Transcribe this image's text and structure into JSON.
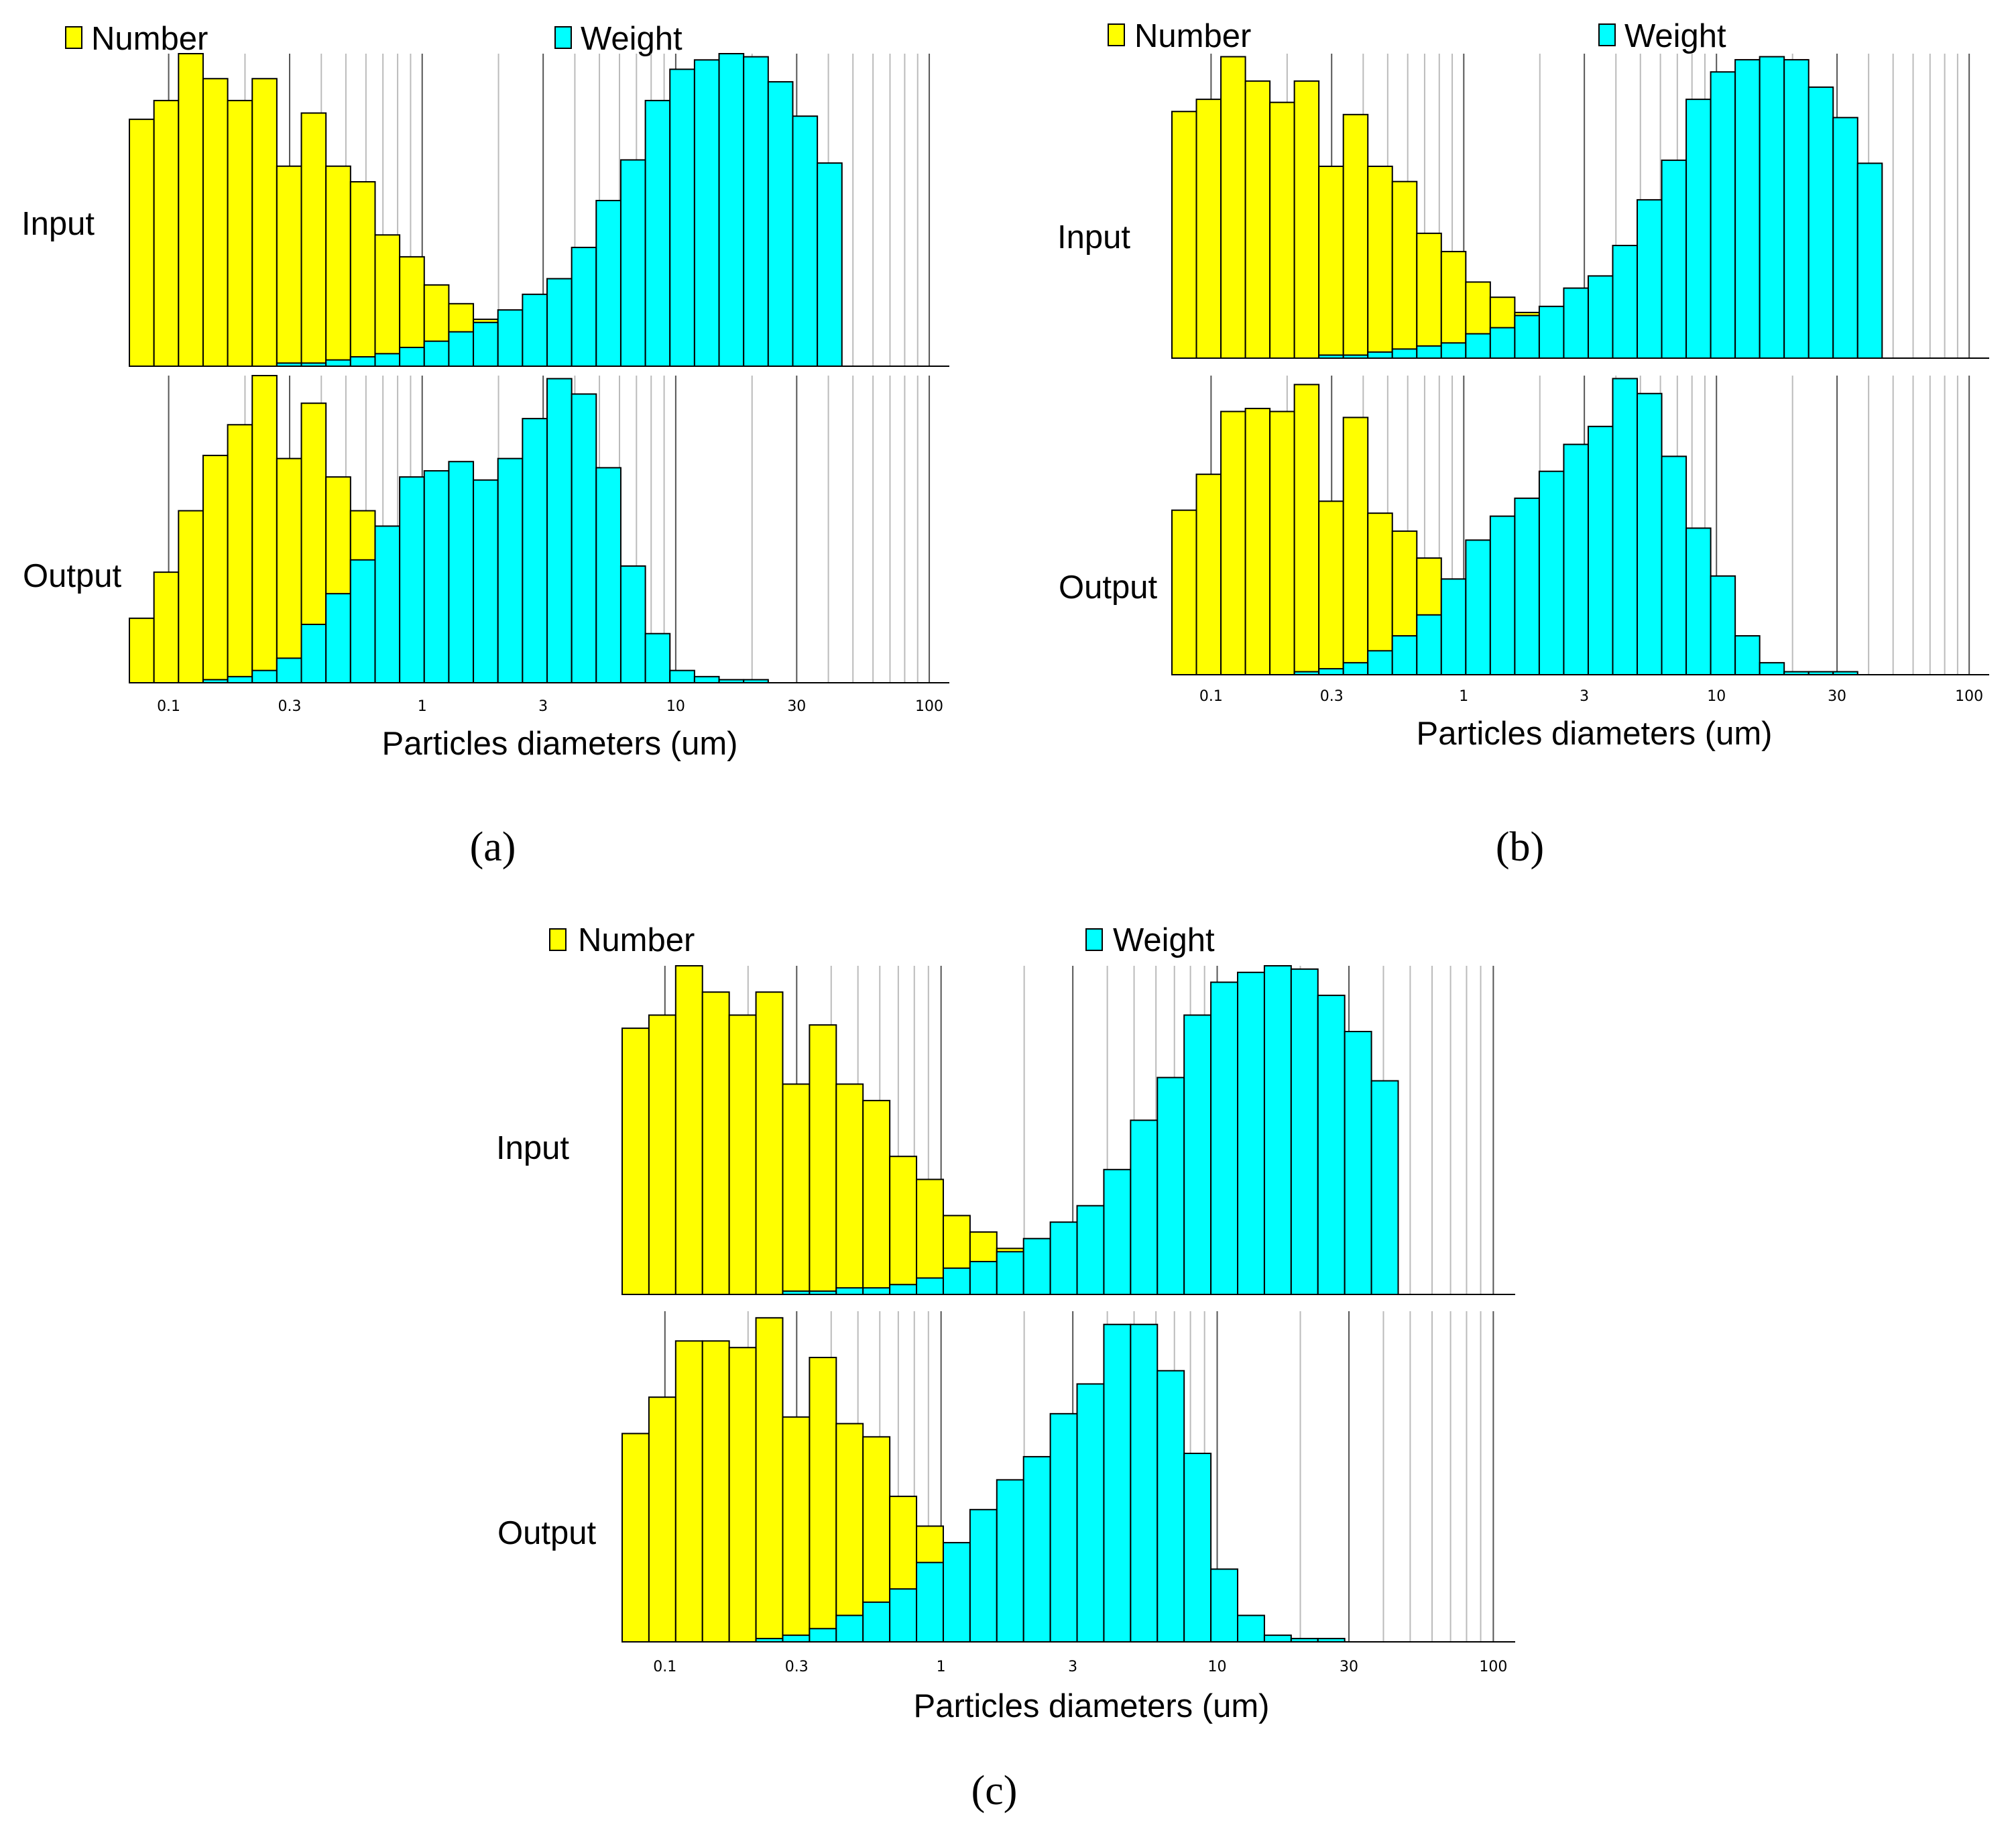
{
  "figure": {
    "xlabel": "Particles diameters (um)",
    "legend": {
      "number_label": "Number",
      "weight_label": "Weight"
    },
    "row_labels": {
      "input": "Input",
      "output": "Output"
    },
    "tick_values": [
      0.1,
      0.3,
      1,
      3,
      10,
      30,
      100
    ],
    "tick_labels": [
      "0.1",
      "0.3",
      "1",
      "3",
      "10",
      "30",
      "100"
    ],
    "colors": {
      "number": "#FFFF00",
      "weight": "#00FFFF",
      "grid": "#BBBBBB",
      "grid_bold": "#555555",
      "axis": "#000000"
    }
  },
  "chart_data": [
    {
      "type": "bar",
      "panel": "a",
      "caption": "(a)",
      "xscale": "log",
      "xlim": [
        0.07,
        120
      ],
      "bin_min": 0.07,
      "bin_ratio": 1.25,
      "series": [
        {
          "name": "Number",
          "subplot": "Input",
          "values": [
            0.79,
            0.85,
            1.0,
            0.92,
            0.85,
            0.92,
            0.64,
            0.81,
            0.64,
            0.59,
            0.42,
            0.35,
            0.26,
            0.2,
            0.15,
            0.11,
            0.07
          ]
        },
        {
          "name": "Weight",
          "subplot": "Input",
          "values": [
            0,
            0,
            0,
            0,
            0,
            0,
            0.01,
            0.01,
            0.02,
            0.03,
            0.04,
            0.06,
            0.08,
            0.11,
            0.14,
            0.18,
            0.23,
            0.28,
            0.38,
            0.53,
            0.66,
            0.85,
            0.95,
            0.98,
            1.0,
            0.99,
            0.91,
            0.8,
            0.65
          ]
        },
        {
          "name": "Number",
          "subplot": "Output",
          "values": [
            0.21,
            0.36,
            0.56,
            0.74,
            0.84,
            1.0,
            0.73,
            0.91,
            0.67,
            0.56
          ]
        },
        {
          "name": "Weight",
          "subplot": "Output",
          "values": [
            0,
            0,
            0,
            0.01,
            0.02,
            0.04,
            0.08,
            0.19,
            0.29,
            0.4,
            0.51,
            0.67,
            0.69,
            0.72,
            0.66,
            0.73,
            0.86,
            0.99,
            0.94,
            0.7,
            0.38,
            0.16,
            0.04,
            0.02,
            0.01,
            0.01
          ]
        }
      ]
    },
    {
      "type": "bar",
      "panel": "b",
      "caption": "(b)",
      "xscale": "log",
      "xlim": [
        0.07,
        120
      ],
      "bin_min": 0.07,
      "bin_ratio": 1.25,
      "series": [
        {
          "name": "Number",
          "subplot": "Input",
          "values": [
            0.81,
            0.85,
            0.99,
            0.91,
            0.84,
            0.91,
            0.63,
            0.8,
            0.63,
            0.58,
            0.41,
            0.35,
            0.25,
            0.2,
            0.15,
            0.11,
            0.07
          ]
        },
        {
          "name": "Weight",
          "subplot": "Input",
          "values": [
            0,
            0,
            0,
            0,
            0,
            0,
            0.01,
            0.01,
            0.02,
            0.03,
            0.04,
            0.05,
            0.08,
            0.1,
            0.14,
            0.17,
            0.23,
            0.27,
            0.37,
            0.52,
            0.65,
            0.85,
            0.94,
            0.98,
            0.99,
            0.98,
            0.89,
            0.79,
            0.64
          ]
        },
        {
          "name": "Number",
          "subplot": "Output",
          "values": [
            0.55,
            0.67,
            0.88,
            0.89,
            0.88,
            0.97,
            0.58,
            0.86,
            0.54,
            0.48,
            0.39
          ]
        },
        {
          "name": "Weight",
          "subplot": "Output",
          "values": [
            0,
            0,
            0,
            0,
            0,
            0.01,
            0.02,
            0.04,
            0.08,
            0.13,
            0.2,
            0.32,
            0.45,
            0.53,
            0.59,
            0.68,
            0.77,
            0.83,
            0.99,
            0.94,
            0.73,
            0.49,
            0.33,
            0.13,
            0.04,
            0.01,
            0.01,
            0.01
          ]
        }
      ]
    },
    {
      "type": "bar",
      "panel": "c",
      "caption": "(c)",
      "xscale": "log",
      "xlim": [
        0.07,
        120
      ],
      "bin_min": 0.07,
      "bin_ratio": 1.25,
      "series": [
        {
          "name": "Number",
          "subplot": "Input",
          "values": [
            0.81,
            0.85,
            1.0,
            0.92,
            0.85,
            0.92,
            0.64,
            0.82,
            0.64,
            0.59,
            0.42,
            0.35,
            0.24,
            0.19,
            0.14,
            0.1,
            0.06
          ]
        },
        {
          "name": "Weight",
          "subplot": "Input",
          "values": [
            0,
            0,
            0,
            0,
            0,
            0,
            0.01,
            0.01,
            0.02,
            0.02,
            0.03,
            0.05,
            0.08,
            0.1,
            0.13,
            0.17,
            0.22,
            0.27,
            0.38,
            0.53,
            0.66,
            0.85,
            0.95,
            0.98,
            1.0,
            0.99,
            0.91,
            0.8,
            0.65
          ]
        },
        {
          "name": "Number",
          "subplot": "Output",
          "values": [
            0.63,
            0.74,
            0.91,
            0.91,
            0.89,
            0.98,
            0.68,
            0.86,
            0.66,
            0.62,
            0.44,
            0.35,
            0.21
          ]
        },
        {
          "name": "Weight",
          "subplot": "Output",
          "values": [
            0,
            0,
            0,
            0,
            0,
            0.01,
            0.02,
            0.04,
            0.08,
            0.12,
            0.16,
            0.24,
            0.3,
            0.4,
            0.49,
            0.56,
            0.69,
            0.78,
            0.96,
            0.96,
            0.82,
            0.57,
            0.22,
            0.08,
            0.02,
            0.01,
            0.01
          ]
        }
      ]
    }
  ]
}
